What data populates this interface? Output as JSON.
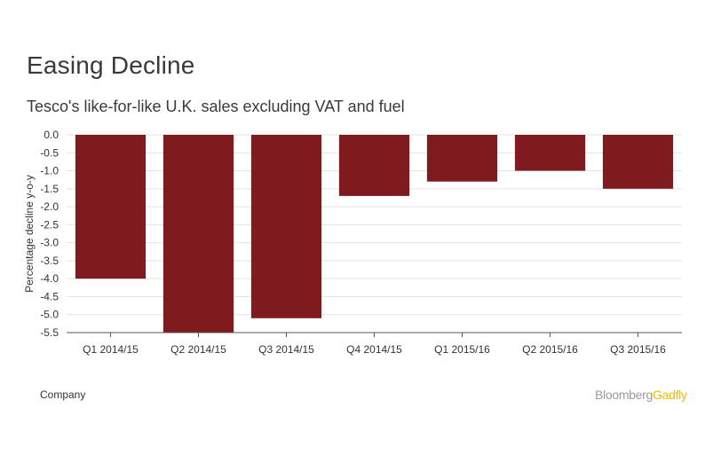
{
  "title": "Easing Decline",
  "subtitle": "Tesco's like-for-like U.K. sales excluding VAT and fuel",
  "source": "Company",
  "brand": {
    "part1": "Bloomberg",
    "part2": "Gadfly",
    "color1": "#9a9a9a",
    "color2": "#f2b705"
  },
  "chart_data": {
    "type": "bar",
    "title": "Easing Decline",
    "subtitle": "Tesco's like-for-like U.K. sales excluding VAT and fuel",
    "xlabel": "",
    "ylabel": "Percentage decline y-o-y",
    "categories": [
      "Q1 2014/15",
      "Q2 2014/15",
      "Q3 2014/15",
      "Q4 2014/15",
      "Q1 2015/16",
      "Q2 2015/16",
      "Q3 2015/16"
    ],
    "values": [
      -4.0,
      -5.5,
      -5.1,
      -1.7,
      -1.3,
      -1.0,
      -1.5
    ],
    "ylim": [
      -5.5,
      0.0
    ],
    "yticks": [
      "0.0",
      "-0.5",
      "-1.0",
      "-1.5",
      "-2.0",
      "-2.5",
      "-3.0",
      "-3.5",
      "-4.0",
      "-4.5",
      "-5.0",
      "-5.5"
    ],
    "grid": true,
    "legend": "none",
    "bar_color": "#7f1a1f"
  }
}
